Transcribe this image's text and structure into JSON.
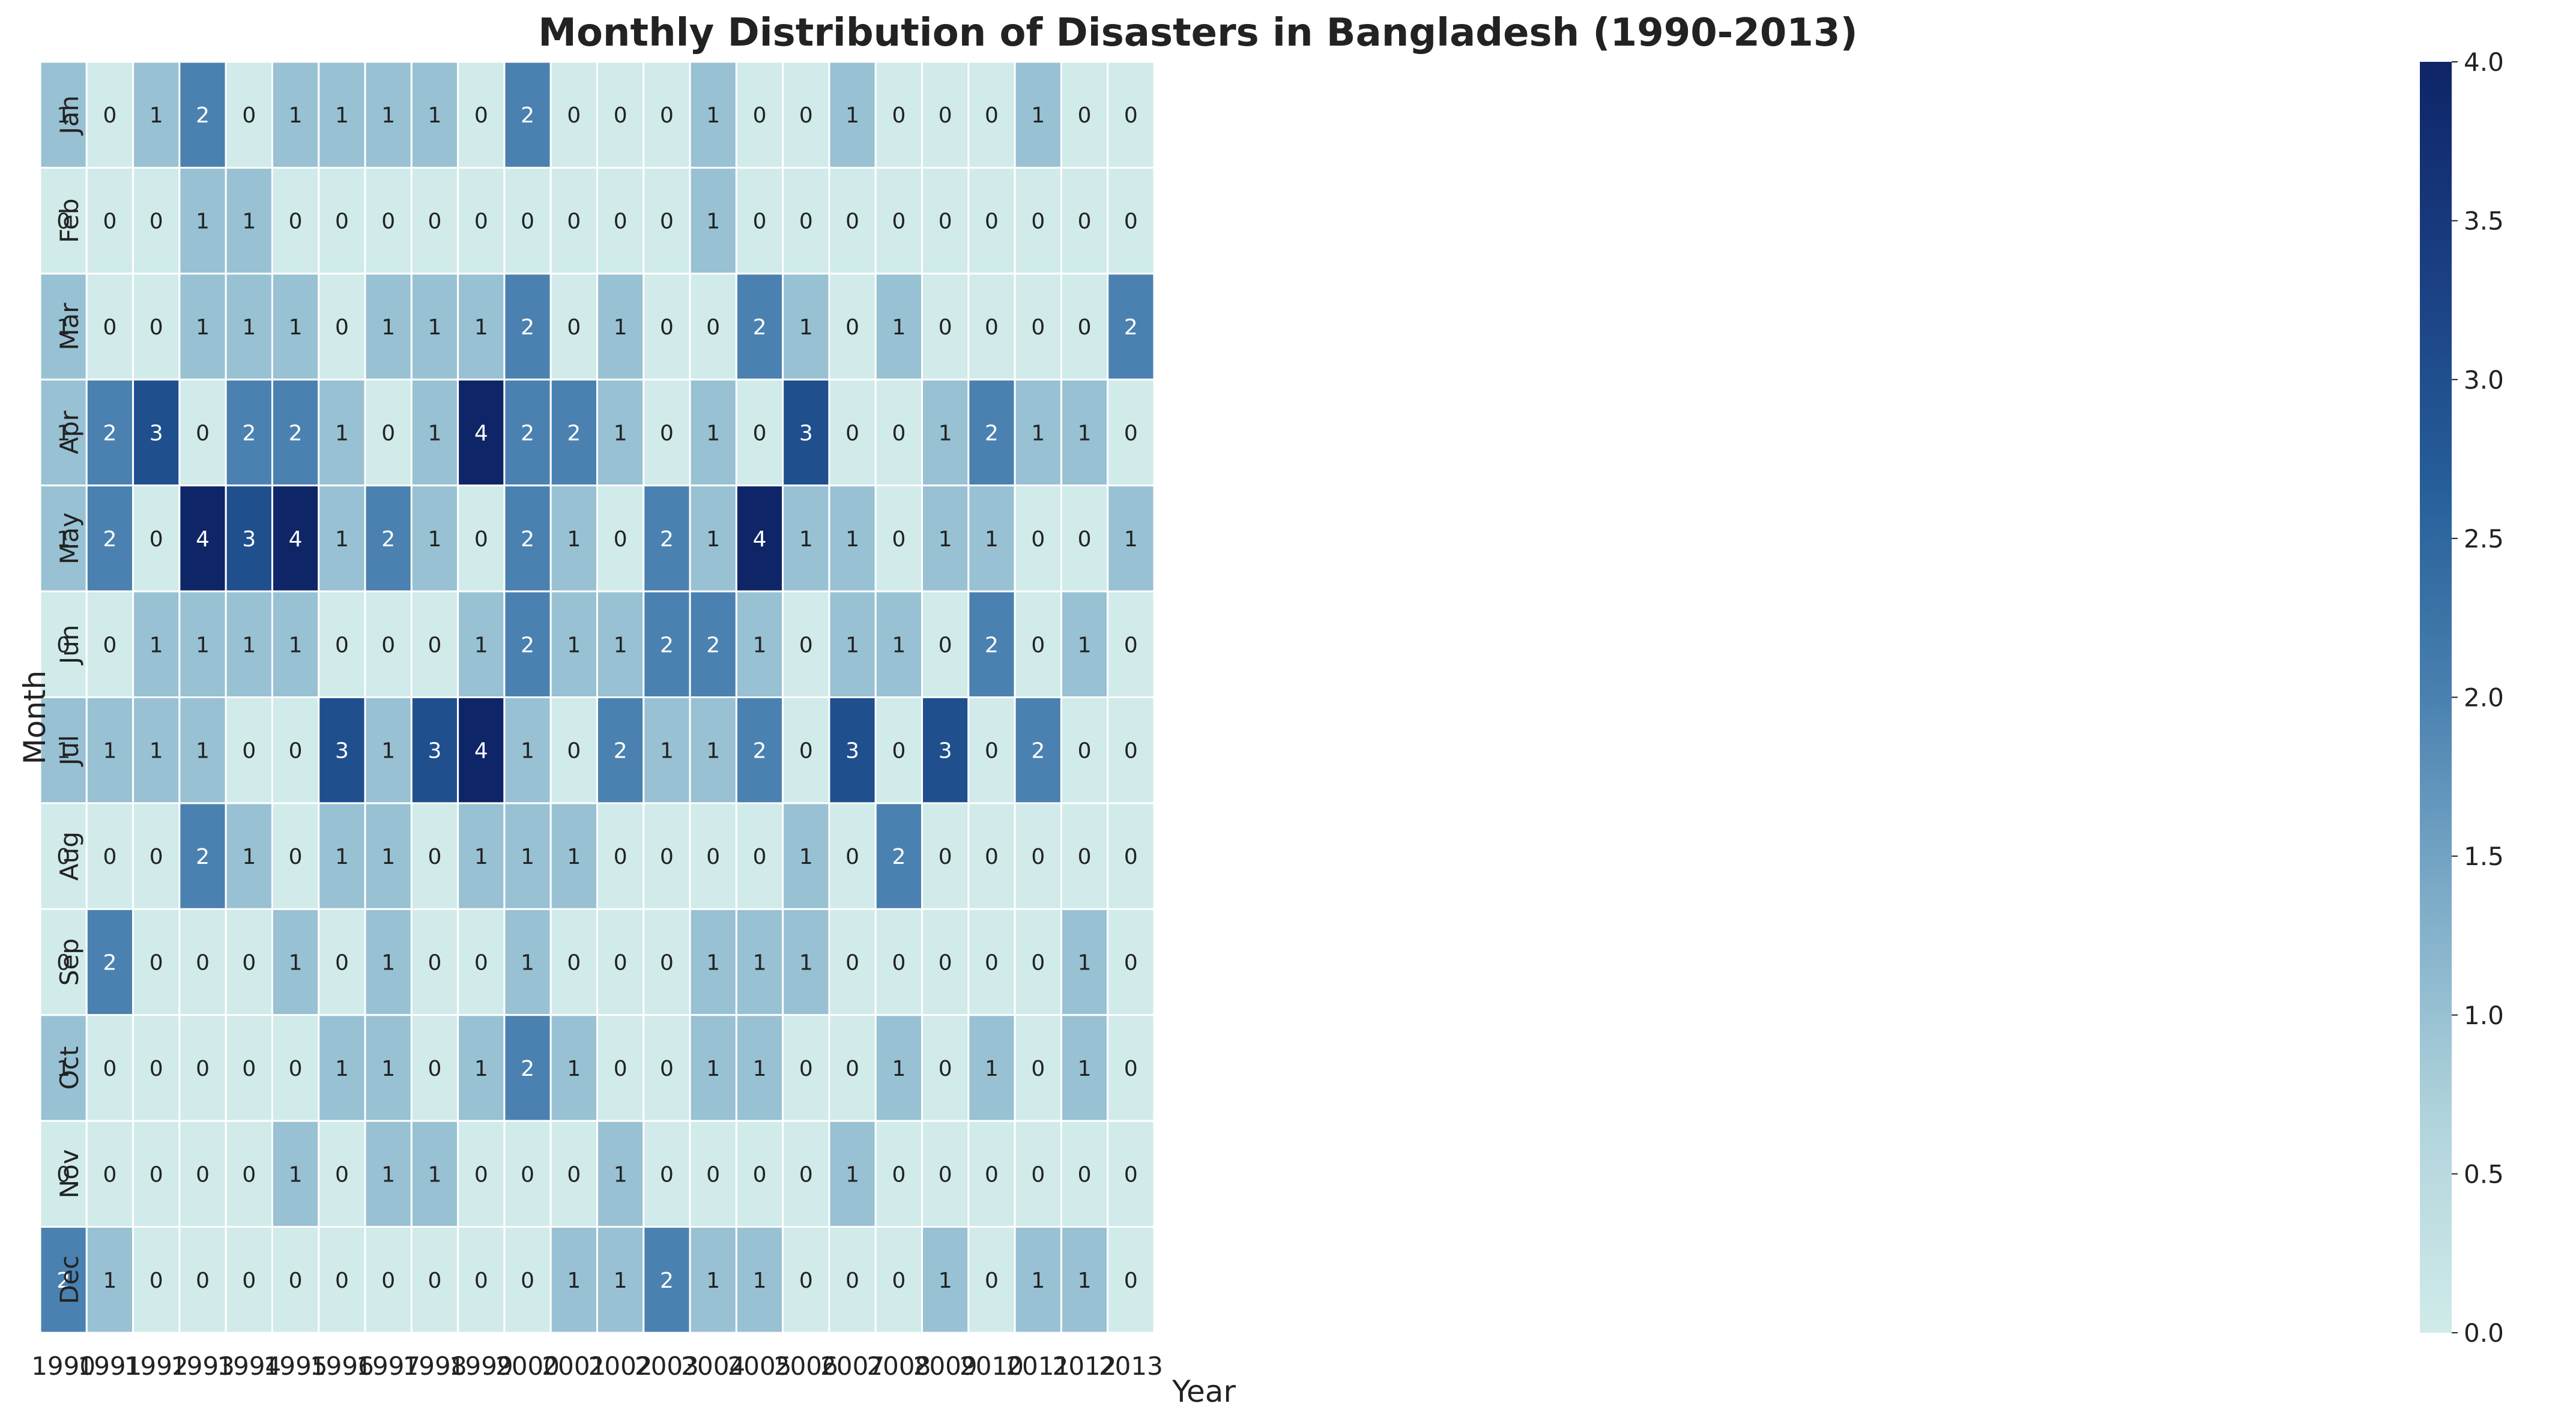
{
  "chart_data": {
    "type": "heatmap",
    "title": "Monthly Distribution of Disasters in Bangladesh (1990-2013)",
    "xlabel": "Year",
    "ylabel": "Month",
    "x_categories": [
      "1990",
      "1991",
      "1992",
      "1993",
      "1994",
      "1995",
      "1996",
      "1997",
      "1998",
      "1999",
      "2000",
      "2001",
      "2002",
      "2003",
      "2004",
      "2005",
      "2006",
      "2007",
      "2008",
      "2009",
      "2010",
      "2011",
      "2012",
      "2013"
    ],
    "y_categories": [
      "Jan",
      "Feb",
      "Mar",
      "Apr",
      "May",
      "Jun",
      "Jul",
      "Aug",
      "Sep",
      "Oct",
      "Nov",
      "Dec"
    ],
    "values": [
      [
        1,
        0,
        1,
        2,
        0,
        1,
        1,
        1,
        1,
        0,
        2,
        0,
        0,
        0,
        1,
        0,
        0,
        1,
        0,
        0,
        0,
        1,
        0,
        0
      ],
      [
        0,
        0,
        0,
        1,
        1,
        0,
        0,
        0,
        0,
        0,
        0,
        0,
        0,
        0,
        1,
        0,
        0,
        0,
        0,
        0,
        0,
        0,
        0,
        0
      ],
      [
        1,
        0,
        0,
        1,
        1,
        1,
        0,
        1,
        1,
        1,
        2,
        0,
        1,
        0,
        0,
        2,
        1,
        0,
        1,
        0,
        0,
        0,
        0,
        2
      ],
      [
        1,
        2,
        3,
        0,
        2,
        2,
        1,
        0,
        1,
        4,
        2,
        2,
        1,
        0,
        1,
        0,
        3,
        0,
        0,
        1,
        2,
        1,
        1,
        0
      ],
      [
        1,
        2,
        0,
        4,
        3,
        4,
        1,
        2,
        1,
        0,
        2,
        1,
        0,
        2,
        1,
        4,
        1,
        1,
        0,
        1,
        1,
        0,
        0,
        1
      ],
      [
        0,
        0,
        1,
        1,
        1,
        1,
        0,
        0,
        0,
        1,
        2,
        1,
        1,
        2,
        2,
        1,
        0,
        1,
        1,
        0,
        2,
        0,
        1,
        0
      ],
      [
        1,
        1,
        1,
        1,
        0,
        0,
        3,
        1,
        3,
        4,
        1,
        0,
        2,
        1,
        1,
        2,
        0,
        3,
        0,
        3,
        0,
        2,
        0,
        0
      ],
      [
        0,
        0,
        0,
        2,
        1,
        0,
        1,
        1,
        0,
        1,
        1,
        1,
        0,
        0,
        0,
        0,
        1,
        0,
        2,
        0,
        0,
        0,
        0,
        0
      ],
      [
        0,
        2,
        0,
        0,
        0,
        1,
        0,
        1,
        0,
        0,
        1,
        0,
        0,
        0,
        1,
        1,
        1,
        0,
        0,
        0,
        0,
        0,
        1,
        0
      ],
      [
        1,
        0,
        0,
        0,
        0,
        0,
        1,
        1,
        0,
        1,
        2,
        1,
        0,
        0,
        1,
        1,
        0,
        0,
        1,
        0,
        1,
        0,
        1,
        0
      ],
      [
        0,
        0,
        0,
        0,
        0,
        1,
        0,
        1,
        1,
        0,
        0,
        0,
        1,
        0,
        0,
        0,
        0,
        1,
        0,
        0,
        0,
        0,
        0,
        0
      ],
      [
        2,
        1,
        0,
        0,
        0,
        0,
        0,
        0,
        0,
        0,
        0,
        1,
        1,
        2,
        1,
        1,
        0,
        0,
        0,
        1,
        0,
        1,
        1,
        0
      ]
    ],
    "colorbar": {
      "min": 0.0,
      "max": 4.0,
      "ticks": [
        "0.0",
        "0.5",
        "1.0",
        "1.5",
        "2.0",
        "2.5",
        "3.0",
        "3.5",
        "4.0"
      ],
      "colormap": [
        "#d0ebe9",
        "#b1d4dc",
        "#7faec9",
        "#4a81b0",
        "#265e99",
        "#1a3f82",
        "#0e2567"
      ]
    },
    "grid": true,
    "legend": "colorbar-right"
  }
}
